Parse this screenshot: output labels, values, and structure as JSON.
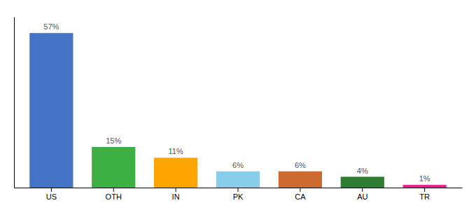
{
  "chart_data": {
    "type": "bar",
    "categories": [
      "US",
      "OTH",
      "IN",
      "PK",
      "CA",
      "AU",
      "TR"
    ],
    "values": [
      57,
      15,
      11,
      6,
      6,
      4,
      1
    ],
    "value_labels": [
      "57%",
      "15%",
      "11%",
      "6%",
      "6%",
      "4%",
      "1%"
    ],
    "colors": [
      "#4472C4",
      "#3CB043",
      "#FFA500",
      "#87CEEB",
      "#CD6A2F",
      "#2E7D32",
      "#E91E8C"
    ],
    "ylim": [
      0,
      63
    ],
    "data_labels": true,
    "tick_labels": "x"
  }
}
